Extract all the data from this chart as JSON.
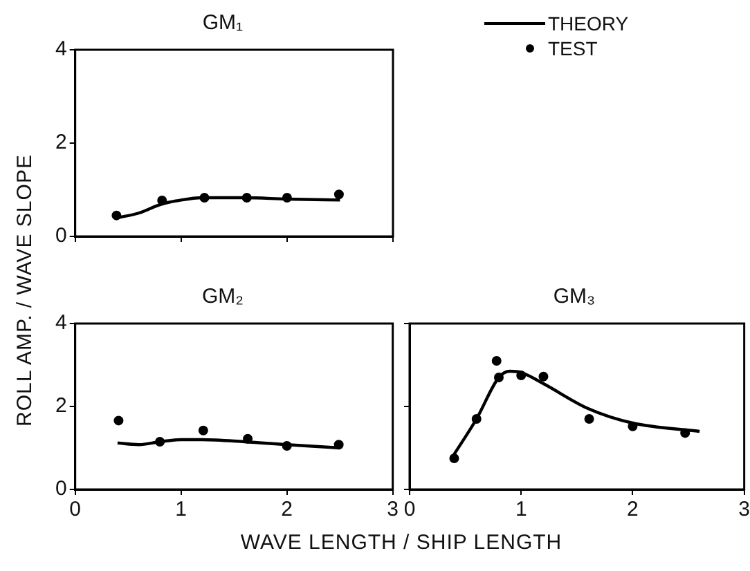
{
  "chart_data": [
    {
      "type": "line",
      "title": "GM₁",
      "ylabel": "ROLL AMP. / WAVE SLOPE",
      "xlim": [
        0,
        3
      ],
      "xticks": [
        0,
        1,
        2,
        3
      ],
      "ylim": [
        0,
        4
      ],
      "yticks": [
        0,
        2,
        4
      ],
      "tick_labels": "y",
      "grid": false,
      "legend": "top right",
      "series": [
        {
          "name": "THEORY",
          "color": "#000000",
          "marker": "none",
          "x": [
            0.4,
            0.6,
            0.8,
            1.0,
            1.2,
            1.6,
            2.0,
            2.5
          ],
          "values": [
            0.4,
            0.5,
            0.68,
            0.78,
            0.83,
            0.83,
            0.8,
            0.78
          ]
        },
        {
          "name": "TEST",
          "type": "scatter",
          "color": "#000000",
          "marker": "circle",
          "x": [
            0.39,
            0.82,
            1.22,
            1.62,
            2.0,
            2.49
          ],
          "values": [
            0.45,
            0.77,
            0.83,
            0.83,
            0.83,
            0.9
          ]
        }
      ]
    },
    {
      "type": "line",
      "title": "GM₂",
      "xlim": [
        0,
        3
      ],
      "xticks": [
        0,
        1,
        2,
        3
      ],
      "ylim": [
        0,
        4
      ],
      "yticks": [
        0,
        2,
        4
      ],
      "grid": false,
      "series": [
        {
          "color": "#000000",
          "marker": "none",
          "x": [
            0.4,
            0.6,
            0.8,
            1.0,
            1.2,
            1.6,
            2.0,
            2.5
          ],
          "values": [
            1.12,
            1.08,
            1.15,
            1.2,
            1.2,
            1.15,
            1.08,
            1.0
          ]
        },
        {
          "type": "scatter",
          "color": "#000000",
          "marker": "circle",
          "x": [
            0.41,
            0.8,
            1.21,
            1.63,
            2.0,
            2.49
          ],
          "values": [
            1.66,
            1.15,
            1.42,
            1.22,
            1.05,
            1.08
          ]
        }
      ]
    },
    {
      "type": "line",
      "title": "GM₃",
      "xlabel": "WAVE LENGTH / SHIP LENGTH",
      "xlim": [
        0,
        3
      ],
      "xticks": [
        0,
        1,
        2,
        3
      ],
      "ylim": [
        0,
        4
      ],
      "yticks": [
        0,
        2,
        4
      ],
      "tick_labels": "x",
      "grid": false,
      "series": [
        {
          "color": "#000000",
          "marker": "none",
          "x": [
            0.4,
            0.6,
            0.8,
            0.9,
            1.0,
            1.2,
            1.6,
            2.0,
            2.6
          ],
          "values": [
            0.85,
            1.7,
            2.7,
            2.85,
            2.82,
            2.55,
            1.95,
            1.6,
            1.4
          ]
        },
        {
          "type": "scatter",
          "color": "#000000",
          "marker": "circle",
          "x": [
            0.4,
            0.6,
            0.78,
            0.8,
            1.0,
            1.2,
            1.61,
            2.0,
            2.47
          ],
          "values": [
            0.75,
            1.7,
            3.1,
            2.7,
            2.75,
            2.72,
            1.7,
            1.52,
            1.36
          ]
        }
      ]
    }
  ]
}
